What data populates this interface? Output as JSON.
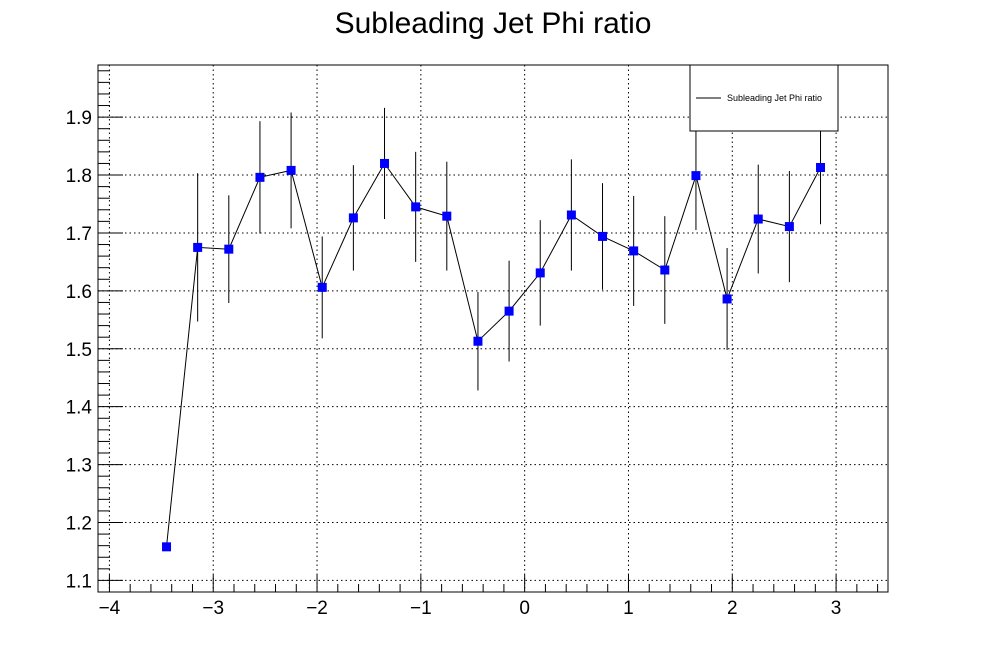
{
  "chart_data": {
    "type": "line",
    "title": "Subleading Jet Phi ratio",
    "xlabel": "",
    "ylabel": "",
    "xlim": [
      -4.11,
      3.5
    ],
    "ylim": [
      1.08,
      1.99
    ],
    "x_ticks": [
      -4,
      -3,
      -2,
      -1,
      0,
      1,
      2,
      3
    ],
    "x_tick_labels": [
      "−4",
      "−3",
      "−2",
      "−1",
      "0",
      "1",
      "2",
      "3"
    ],
    "y_ticks": [
      1.1,
      1.2,
      1.3,
      1.4,
      1.5,
      1.6,
      1.7,
      1.8,
      1.9
    ],
    "y_tick_labels": [
      "1.1",
      "1.2",
      "1.3",
      "1.4",
      "1.5",
      "1.6",
      "1.7",
      "1.8",
      "1.9"
    ],
    "grid": true,
    "legend": {
      "position": "top-right",
      "entries": [
        "Subleading Jet Phi ratio"
      ]
    },
    "colors": {
      "marker": "#0000ff",
      "line": "#000000",
      "grid": "#000000"
    },
    "series": [
      {
        "name": "Subleading Jet Phi ratio",
        "marker": "square",
        "x": [
          -3.45,
          -3.15,
          -2.85,
          -2.55,
          -2.25,
          -1.95,
          -1.65,
          -1.35,
          -1.05,
          -0.75,
          -0.45,
          -0.15,
          0.15,
          0.45,
          0.75,
          1.05,
          1.35,
          1.65,
          1.95,
          2.25,
          2.55,
          2.85
        ],
        "y": [
          1.158,
          1.675,
          1.672,
          1.796,
          1.808,
          1.606,
          1.726,
          1.82,
          1.745,
          1.729,
          1.513,
          1.565,
          1.631,
          1.731,
          1.694,
          1.669,
          1.636,
          1.799,
          1.586,
          1.724,
          1.711,
          1.813
        ],
        "err": [
          0,
          0.128,
          0.093,
          0.097,
          0.1,
          0.088,
          0.091,
          0.096,
          0.095,
          0.094,
          0.085,
          0.087,
          0.091,
          0.096,
          0.092,
          0.095,
          0.093,
          0.094,
          0.088,
          0.094,
          0.096,
          0.098
        ]
      }
    ]
  }
}
